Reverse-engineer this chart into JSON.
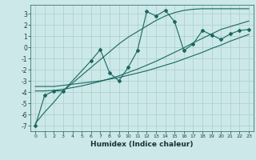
{
  "xlabel": "Humidex (Indice chaleur)",
  "bg_color": "#cce8e8",
  "grid_color": "#aacece",
  "line_color": "#1a6860",
  "x_data": [
    0,
    1,
    2,
    3,
    4,
    5,
    6,
    7,
    8,
    9,
    10,
    11,
    12,
    13,
    14,
    15,
    16,
    17,
    18,
    19,
    20,
    21,
    22,
    23
  ],
  "y_main": [
    -7.0,
    -4.3,
    -3.9,
    -3.9,
    null,
    null,
    -1.2,
    -0.2,
    -2.3,
    -3.0,
    -1.8,
    -0.3,
    3.2,
    2.8,
    3.3,
    2.3,
    -0.3,
    0.3,
    1.5,
    1.1,
    0.7,
    1.2,
    1.5,
    1.6
  ],
  "y_line1": [
    -3.5,
    -3.5,
    -3.5,
    -3.4,
    -3.3,
    -3.2,
    -3.1,
    -3.0,
    -2.85,
    -2.7,
    -2.5,
    -2.3,
    -2.1,
    -1.85,
    -1.6,
    -1.35,
    -1.05,
    -0.75,
    -0.45,
    -0.1,
    0.2,
    0.55,
    0.85,
    1.15
  ],
  "y_line2": [
    -3.9,
    -3.9,
    -3.85,
    -3.75,
    -3.6,
    -3.45,
    -3.25,
    -3.05,
    -2.8,
    -2.55,
    -2.25,
    -1.95,
    -1.6,
    -1.25,
    -0.85,
    -0.45,
    -0.05,
    0.4,
    0.8,
    1.2,
    1.6,
    1.85,
    2.1,
    2.35
  ],
  "y_line3": [
    -6.8,
    -5.8,
    -4.9,
    -3.9,
    -3.2,
    -2.5,
    -1.8,
    -1.1,
    -0.4,
    0.3,
    0.9,
    1.4,
    1.9,
    2.4,
    2.8,
    3.1,
    3.3,
    3.4,
    3.45,
    3.45,
    3.45,
    3.45,
    3.45,
    3.45
  ],
  "ylim": [
    -7.5,
    3.8
  ],
  "xlim": [
    -0.5,
    23.5
  ],
  "yticks": [
    -7,
    -6,
    -5,
    -4,
    -3,
    -2,
    -1,
    0,
    1,
    2,
    3
  ],
  "xticks": [
    0,
    1,
    2,
    3,
    4,
    5,
    6,
    7,
    8,
    9,
    10,
    11,
    12,
    13,
    14,
    15,
    16,
    17,
    18,
    19,
    20,
    21,
    22,
    23
  ],
  "ytick_fontsize": 5.5,
  "xtick_fontsize": 4.5,
  "xlabel_fontsize": 6.5
}
